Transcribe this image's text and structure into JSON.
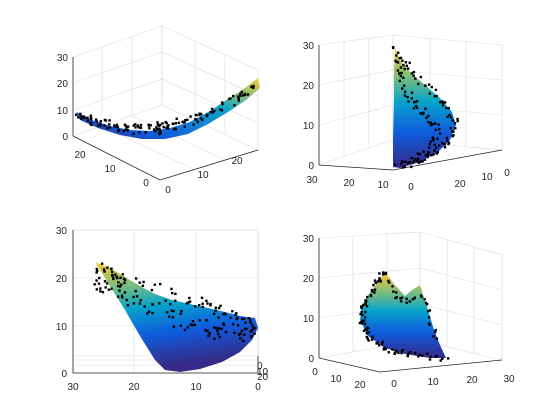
{
  "colors": {
    "parula": [
      "#352a87",
      "#0f5cdd",
      "#1481d6",
      "#06a4ca",
      "#2eb7a4",
      "#87bf77",
      "#d1bb59",
      "#fec832",
      "#f9fb0e"
    ],
    "points": "#000000",
    "axis": "#262626",
    "grid": "#dcdcdc"
  },
  "chart_data": [
    {
      "type": "surface3d",
      "view": "default",
      "zlim": [
        0,
        30
      ],
      "z_ticks": [
        "0",
        "10",
        "20",
        "30"
      ],
      "x_ticks": [
        "0",
        "10",
        "20"
      ],
      "y_ticks": [
        "0",
        "10",
        "20"
      ],
      "grid": true,
      "series": [
        {
          "kind": "surface"
        },
        {
          "kind": "scatter",
          "marker": "dot",
          "color": "#000000"
        }
      ]
    },
    {
      "type": "surface3d",
      "view": "rotated",
      "zlim": [
        0,
        30
      ],
      "z_ticks": [
        "0",
        "10",
        "20",
        "30"
      ],
      "x_ticks": [
        "0",
        "10",
        "20",
        "30"
      ],
      "y_ticks": [
        "0",
        "10",
        "20"
      ],
      "grid": true,
      "series": [
        {
          "kind": "surface"
        },
        {
          "kind": "scatter",
          "marker": "dot",
          "color": "#000000"
        }
      ]
    },
    {
      "type": "surface3d",
      "view": "side-on",
      "zlim": [
        0,
        30
      ],
      "z_ticks": [
        "0",
        "10",
        "20",
        "30"
      ],
      "x_ticks": [
        "30",
        "20",
        "10",
        "0"
      ],
      "y_ticks": [
        "0",
        "10",
        "20"
      ],
      "grid": true,
      "series": [
        {
          "kind": "surface"
        },
        {
          "kind": "scatter",
          "marker": "dot",
          "color": "#000000"
        }
      ]
    },
    {
      "type": "surface3d",
      "view": "rotated",
      "zlim": [
        0,
        30
      ],
      "z_ticks": [
        "0",
        "10",
        "20",
        "30"
      ],
      "x_ticks": [
        "0",
        "10",
        "20",
        "30"
      ],
      "y_ticks": [
        "0",
        "10",
        "20"
      ],
      "grid": true,
      "series": [
        {
          "kind": "surface"
        },
        {
          "kind": "scatter",
          "marker": "dot",
          "color": "#000000"
        }
      ]
    }
  ]
}
